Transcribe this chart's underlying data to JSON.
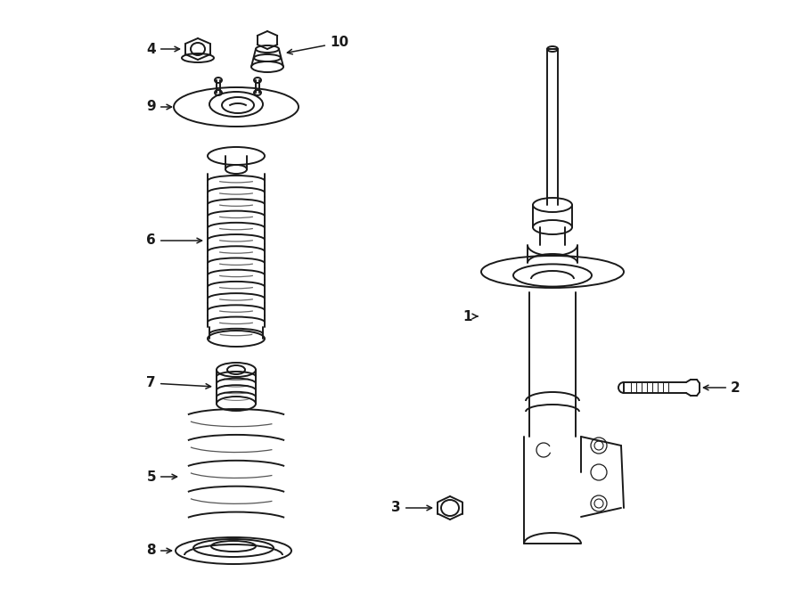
{
  "background_color": "#ffffff",
  "fig_width": 9.0,
  "fig_height": 6.61,
  "dpi": 100,
  "line_color": "#1a1a1a",
  "label_fontsize": 11
}
